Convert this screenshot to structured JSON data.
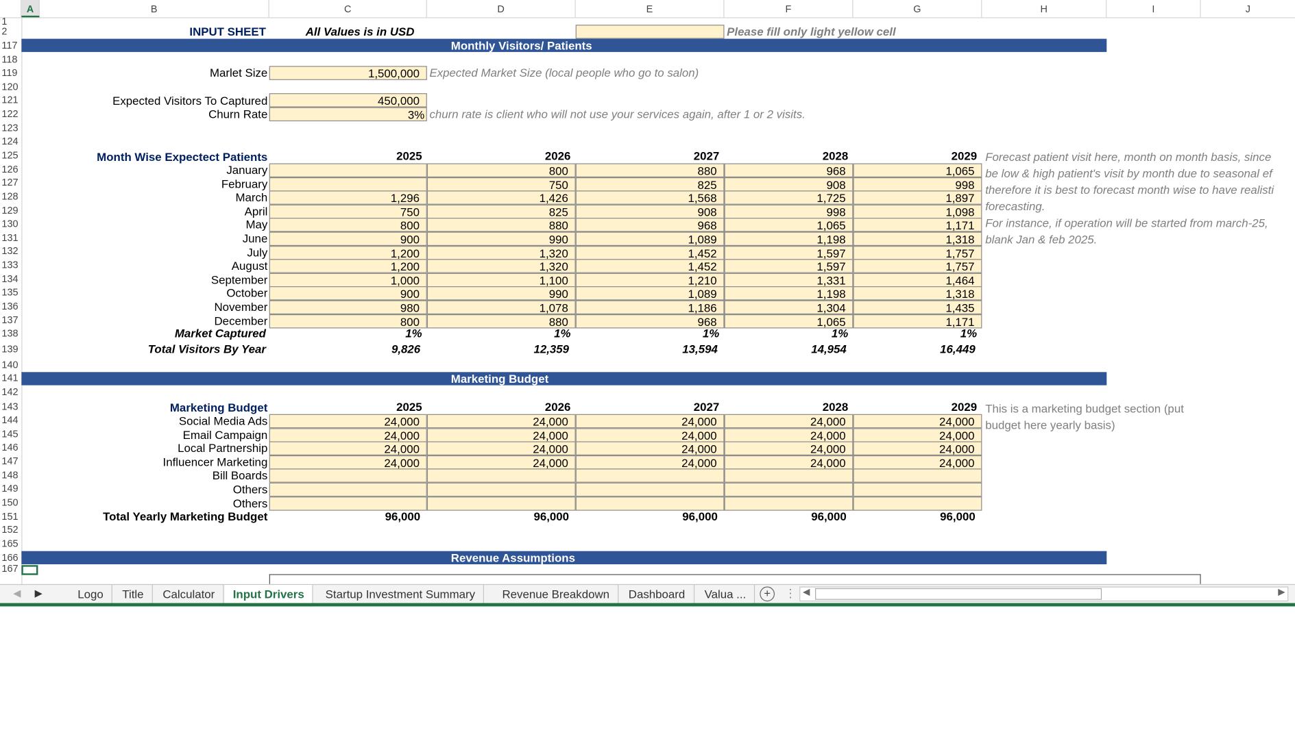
{
  "columns": [
    "A",
    "B",
    "C",
    "D",
    "E",
    "F",
    "G",
    "H",
    "I",
    "J"
  ],
  "rows": [
    "1",
    "2",
    "117",
    "118",
    "119",
    "120",
    "121",
    "122",
    "123",
    "124",
    "125",
    "126",
    "127",
    "128",
    "129",
    "130",
    "131",
    "132",
    "133",
    "134",
    "135",
    "136",
    "137",
    "138",
    "139",
    "140",
    "141",
    "142",
    "143",
    "144",
    "145",
    "146",
    "147",
    "148",
    "149",
    "150",
    "151",
    "152",
    "165",
    "166",
    "167"
  ],
  "header": {
    "title": "INPUT SHEET",
    "usd_note": "All Values is in USD",
    "fill_note": "Please fill only light yellow cell"
  },
  "sections": {
    "visitors": "Monthly Visitors/ Patients",
    "marketing": "Marketing Budget",
    "revenue": "Revenue Assumptions"
  },
  "market": {
    "size_label": "Marlet Size",
    "size_value": "1,500,000",
    "size_note": "Expected Market Size (local people who go to salon)",
    "captured_label": "Expected Visitors To Captured",
    "captured_value": "450,000",
    "churn_label": "Churn Rate",
    "churn_value": "3%",
    "churn_note": "churn rate is client who will not use your services again, after 1 or 2 visits."
  },
  "patients": {
    "title": "Month Wise Expectect Patients",
    "years": [
      "2025",
      "2026",
      "2027",
      "2028",
      "2029"
    ],
    "months": [
      {
        "name": "January",
        "values": [
          "",
          "800",
          "880",
          "968",
          "1,065"
        ]
      },
      {
        "name": "February",
        "values": [
          "",
          "750",
          "825",
          "908",
          "998"
        ]
      },
      {
        "name": "March",
        "values": [
          "1,296",
          "1,426",
          "1,568",
          "1,725",
          "1,897"
        ]
      },
      {
        "name": "April",
        "values": [
          "750",
          "825",
          "908",
          "998",
          "1,098"
        ]
      },
      {
        "name": "May",
        "values": [
          "800",
          "880",
          "968",
          "1,065",
          "1,171"
        ]
      },
      {
        "name": "June",
        "values": [
          "900",
          "990",
          "1,089",
          "1,198",
          "1,318"
        ]
      },
      {
        "name": "July",
        "values": [
          "1,200",
          "1,320",
          "1,452",
          "1,597",
          "1,757"
        ]
      },
      {
        "name": "August",
        "values": [
          "1,200",
          "1,320",
          "1,452",
          "1,597",
          "1,757"
        ]
      },
      {
        "name": "September",
        "values": [
          "1,000",
          "1,100",
          "1,210",
          "1,331",
          "1,464"
        ]
      },
      {
        "name": "October",
        "values": [
          "900",
          "990",
          "1,089",
          "1,198",
          "1,318"
        ]
      },
      {
        "name": "November",
        "values": [
          "980",
          "1,078",
          "1,186",
          "1,304",
          "1,435"
        ]
      },
      {
        "name": "December",
        "values": [
          "800",
          "880",
          "968",
          "1,065",
          "1,171"
        ]
      }
    ],
    "market_captured_label": "Market Captured",
    "market_captured": [
      "1%",
      "1%",
      "1%",
      "1%",
      "1%"
    ],
    "total_label": "Total Visitors By Year",
    "totals": [
      "9,826",
      "12,359",
      "13,594",
      "14,954",
      "16,449"
    ],
    "notes": [
      "Forecast patient visit here, month on month basis, since",
      "be low & high patient's visit by month due to seasonal ef",
      "therefore it is best to forecast month wise to have realisti",
      "forecasting.",
      "For instance, if operation will be started from march-25,",
      "blank Jan & feb 2025."
    ]
  },
  "marketing": {
    "title": "Marketing Budget",
    "years": [
      "2025",
      "2026",
      "2027",
      "2028",
      "2029"
    ],
    "items": [
      {
        "name": "Social Media Ads",
        "values": [
          "24,000",
          "24,000",
          "24,000",
          "24,000",
          "24,000"
        ]
      },
      {
        "name": "Email Campaign",
        "values": [
          "24,000",
          "24,000",
          "24,000",
          "24,000",
          "24,000"
        ]
      },
      {
        "name": "Local Partnership",
        "values": [
          "24,000",
          "24,000",
          "24,000",
          "24,000",
          "24,000"
        ]
      },
      {
        "name": "Influencer Marketing",
        "values": [
          "24,000",
          "24,000",
          "24,000",
          "24,000",
          "24,000"
        ]
      },
      {
        "name": "Bill Boards",
        "values": [
          "",
          "",
          "",
          "",
          ""
        ]
      },
      {
        "name": "Others",
        "values": [
          "",
          "",
          "",
          "",
          ""
        ]
      },
      {
        "name": "Others",
        "values": [
          "",
          "",
          "",
          "",
          ""
        ]
      }
    ],
    "total_label": "Total Yearly Marketing Budget",
    "totals": [
      "96,000",
      "96,000",
      "96,000",
      "96,000",
      "96,000"
    ],
    "notes": [
      "This is a marketing budget section (put",
      "budget here yearly basis)"
    ]
  },
  "tabs": [
    "Logo",
    "Title",
    "Calculator",
    "Input Drivers",
    "Startup Investment Summary",
    "Revenue Breakdown",
    "Dashboard",
    "Valua ..."
  ],
  "active_tab": "Input Drivers",
  "colors": {
    "band": "#2f5597",
    "input": "#fff2cc",
    "accent": "#217346",
    "label": "#002060"
  }
}
